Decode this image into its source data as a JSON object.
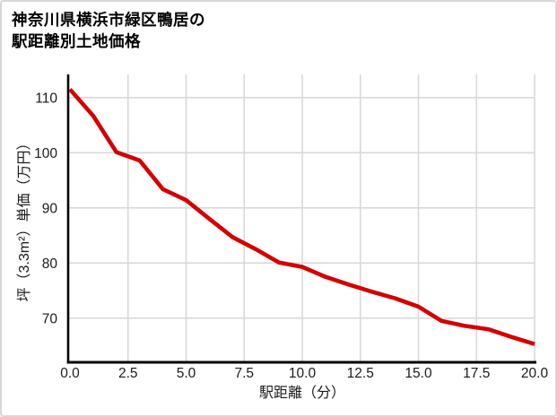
{
  "title": {
    "line1": "神奈川県横浜市緑区鴨居の",
    "line2": "駅距離別土地価格"
  },
  "chart_data": {
    "type": "line",
    "title": "神奈川県横浜市緑区鴨居の駅距離別土地価格",
    "xlabel": "駅距離（分）",
    "ylabel": "坪（3.3m²）単価（万円）",
    "x": [
      0,
      1,
      2,
      3,
      4,
      5,
      6,
      7,
      8,
      9,
      10,
      11,
      12,
      13,
      14,
      15,
      16,
      17,
      18,
      19,
      20
    ],
    "y": [
      111.5,
      106.7,
      100.1,
      98.6,
      93.4,
      91.4,
      88.0,
      84.7,
      82.5,
      80.1,
      79.3,
      77.5,
      76.1,
      74.8,
      73.6,
      72.1,
      69.5,
      68.6,
      68.0,
      66.6,
      65.3
    ],
    "x_tick_values": [
      0,
      2.5,
      5,
      7.5,
      10,
      12.5,
      15,
      17.5,
      20
    ],
    "x_tick_labels": [
      "0.0",
      "2.5",
      "5.0",
      "7.5",
      "10.0",
      "12.5",
      "15.0",
      "17.5",
      "20.0"
    ],
    "y_tick_values": [
      70,
      80,
      90,
      100,
      110
    ],
    "y_tick_labels": [
      "70",
      "80",
      "90",
      "100",
      "110"
    ],
    "xlim": [
      0,
      20
    ],
    "ylim": [
      62,
      114.2
    ],
    "grid": true,
    "legend": false,
    "line_color": "#d40000",
    "grid_color": "#d9d9d9",
    "axis_color": "#000000",
    "tick_label_color": "#1a1a1a"
  }
}
